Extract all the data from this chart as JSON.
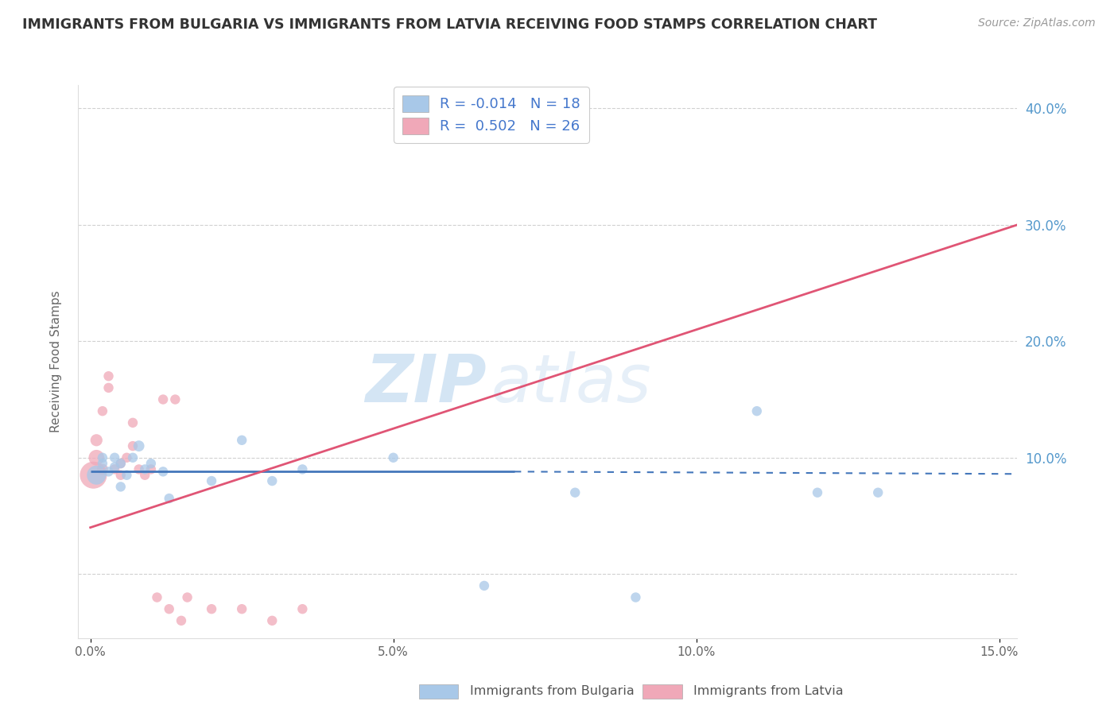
{
  "title": "IMMIGRANTS FROM BULGARIA VS IMMIGRANTS FROM LATVIA RECEIVING FOOD STAMPS CORRELATION CHART",
  "source": "Source: ZipAtlas.com",
  "ylabel": "Receiving Food Stamps",
  "legend_label1": "Immigrants from Bulgaria",
  "legend_label2": "Immigrants from Latvia",
  "color_bulgaria": "#a8c8e8",
  "color_latvia": "#f0a8b8",
  "color_bulgaria_line": "#4477bb",
  "color_latvia_line": "#e05575",
  "xlim": [
    -0.002,
    0.153
  ],
  "ylim": [
    -0.055,
    0.42
  ],
  "background": "#ffffff",
  "grid_color": "#cccccc",
  "watermark_zip": "ZIP",
  "watermark_atlas": "atlas",
  "bulgaria_x": [
    0.001,
    0.002,
    0.002,
    0.003,
    0.004,
    0.004,
    0.005,
    0.005,
    0.006,
    0.007,
    0.008,
    0.009,
    0.01,
    0.012,
    0.013,
    0.02,
    0.025,
    0.03,
    0.035,
    0.05,
    0.065,
    0.08,
    0.09,
    0.11,
    0.12,
    0.13
  ],
  "bulgaria_y": [
    0.085,
    0.095,
    0.1,
    0.088,
    0.092,
    0.1,
    0.075,
    0.095,
    0.085,
    0.1,
    0.11,
    0.09,
    0.095,
    0.088,
    0.065,
    0.08,
    0.115,
    0.08,
    0.09,
    0.1,
    -0.01,
    0.07,
    -0.02,
    0.14,
    0.07,
    0.07
  ],
  "bulgaria_sizes": [
    300,
    80,
    80,
    80,
    80,
    80,
    80,
    80,
    80,
    80,
    100,
    80,
    80,
    80,
    80,
    80,
    80,
    80,
    80,
    80,
    80,
    80,
    80,
    80,
    80,
    80
  ],
  "latvia_x": [
    0.0005,
    0.001,
    0.001,
    0.002,
    0.002,
    0.003,
    0.003,
    0.004,
    0.005,
    0.005,
    0.006,
    0.007,
    0.007,
    0.008,
    0.009,
    0.01,
    0.011,
    0.012,
    0.013,
    0.014,
    0.015,
    0.016,
    0.02,
    0.025,
    0.03,
    0.035
  ],
  "latvia_y": [
    0.085,
    0.1,
    0.115,
    0.09,
    0.14,
    0.16,
    0.17,
    0.09,
    0.085,
    0.095,
    0.1,
    0.11,
    0.13,
    0.09,
    0.085,
    0.09,
    -0.02,
    0.15,
    -0.03,
    0.15,
    -0.04,
    -0.02,
    -0.03,
    -0.03,
    -0.04,
    -0.03
  ],
  "latvia_sizes": [
    600,
    200,
    120,
    100,
    80,
    80,
    80,
    80,
    80,
    80,
    80,
    80,
    80,
    80,
    80,
    80,
    80,
    80,
    80,
    80,
    80,
    80,
    80,
    80,
    80,
    80
  ],
  "bulgaria_line_x": [
    0.0,
    0.153
  ],
  "bulgaria_line_y": [
    0.088,
    0.086
  ],
  "latvia_line_x": [
    0.0,
    0.153
  ],
  "latvia_line_y": [
    0.04,
    0.3
  ]
}
